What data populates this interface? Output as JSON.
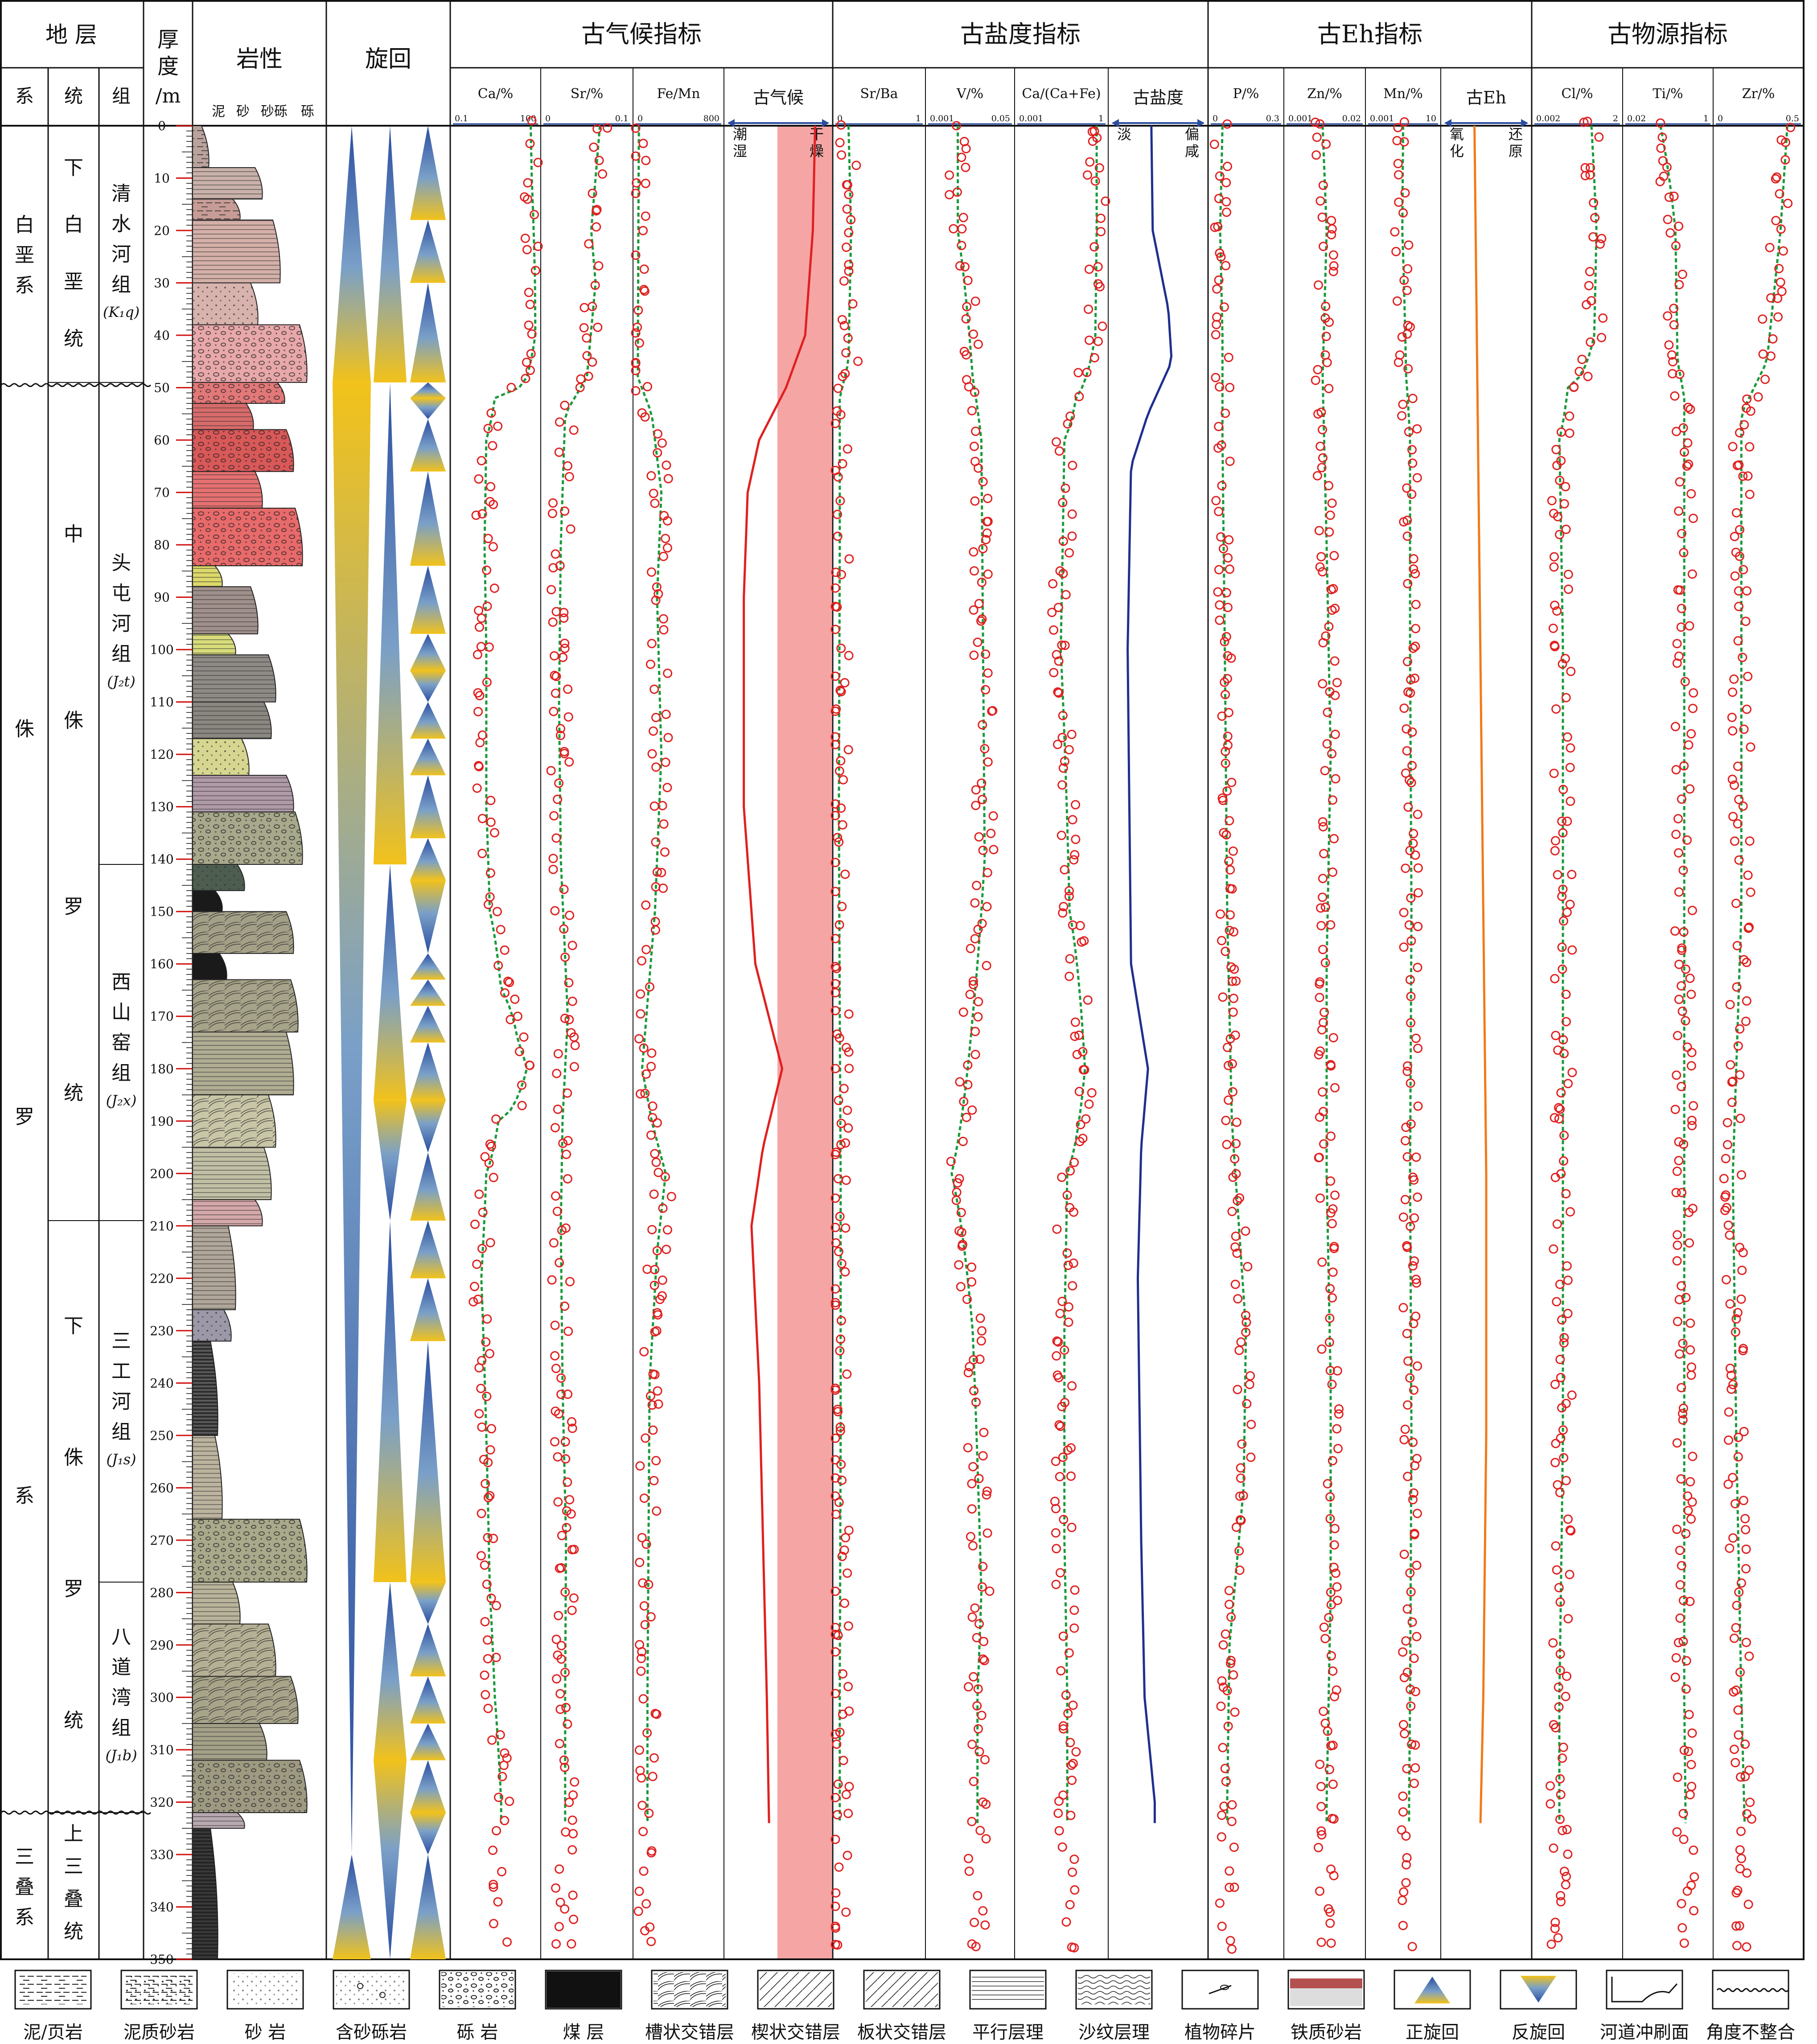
{
  "header": {
    "strata": "地 层",
    "sys": "系",
    "series": "统",
    "formation": "组",
    "thickness": "厚度/m",
    "lithology": "岩性",
    "lith_scale": [
      "泥",
      "砂",
      "砂砾",
      "砾"
    ],
    "cycle": "旋回",
    "groups": [
      "古气候指标",
      "古盐度指标",
      "古Eh指标",
      "古物源指标"
    ]
  },
  "systems": [
    {
      "name": "白垩系",
      "from": 0,
      "to": 49
    },
    {
      "name": "侏罗系",
      "from": 49,
      "to": 322
    },
    {
      "name": "三叠系",
      "from": 322,
      "to": 350
    }
  ],
  "series_units": [
    {
      "name": "下白垩统",
      "from": 0,
      "to": 49
    },
    {
      "name": "中侏罗统",
      "from": 49,
      "to": 209
    },
    {
      "name": "下侏罗统",
      "from": 209,
      "to": 322
    },
    {
      "name": "上三叠统",
      "from": 322,
      "to": 350
    }
  ],
  "formations": [
    {
      "name": "清水河组",
      "code": "(K₁q)",
      "from": 0,
      "to": 49
    },
    {
      "name": "头屯河组",
      "code": "(J₂t)",
      "from": 49,
      "to": 141
    },
    {
      "name": "西山窑组",
      "code": "(J₂x)",
      "from": 141,
      "to": 209
    },
    {
      "name": "三工河组",
      "code": "(J₁s)",
      "from": 209,
      "to": 278
    },
    {
      "name": "八道湾组",
      "code": "(J₁b)",
      "from": 278,
      "to": 322
    },
    {
      "name": "",
      "code": "",
      "from": 322,
      "to": 350
    }
  ],
  "legend": [
    {
      "label": "泥/页岩",
      "icon": "mudstone-pattern"
    },
    {
      "label": "泥质砂岩",
      "icon": "muddy-sandstone-pattern"
    },
    {
      "label": "砂 岩",
      "icon": "sandstone-pattern"
    },
    {
      "label": "含砂砾岩",
      "icon": "pebbly-sandstone-pattern"
    },
    {
      "label": "砾 岩",
      "icon": "conglomerate-pattern"
    },
    {
      "label": "煤 层",
      "icon": "coal-pattern"
    },
    {
      "label": "槽状交错层",
      "icon": "trough-cross-bedding-pattern"
    },
    {
      "label": "楔状交错层",
      "icon": "wedge-cross-bedding-pattern"
    },
    {
      "label": "板状交错层",
      "icon": "tabular-cross-bedding-pattern"
    },
    {
      "label": "平行层理",
      "icon": "parallel-bedding-pattern"
    },
    {
      "label": "沙纹层理",
      "icon": "ripple-bedding-pattern"
    },
    {
      "label": "植物碎片",
      "icon": "plant-fragment-icon"
    },
    {
      "label": "铁质砂岩",
      "icon": "ferruginous-sandstone-pattern"
    },
    {
      "label": "正旋回",
      "icon": "fining-upward-cycle-icon"
    },
    {
      "label": "反旋回",
      "icon": "coarsening-upward-cycle-icon"
    },
    {
      "label": "河道冲刷面",
      "icon": "channel-scour-icon"
    },
    {
      "label": "角度不整合",
      "icon": "angular-unconformity-icon"
    }
  ],
  "colors": {
    "points": "#e02020",
    "trend": "#1a9a3a",
    "climate_curve": "#e02020",
    "climate_band": "#f6a5a5",
    "salinity_curve": "#1f2f8f",
    "eh_curve": "#f07a1a",
    "cycle_yellow": "#f2c21a",
    "cycle_blue": "#2a4da0"
  },
  "chart_data": {
    "type": "scatter",
    "y_axis": {
      "label": "厚度/m",
      "range": [
        0,
        350
      ],
      "ticks": [
        0,
        10,
        20,
        30,
        40,
        50,
        60,
        70,
        80,
        90,
        100,
        110,
        120,
        130,
        140,
        150,
        160,
        170,
        180,
        190,
        200,
        210,
        220,
        230,
        240,
        250,
        260,
        270,
        280,
        290,
        300,
        310,
        320,
        330,
        340,
        350
      ]
    },
    "panels": [
      {
        "group": "古气候指标",
        "name": "Ca/%",
        "kind": "points",
        "scale": "log",
        "xlim": [
          0.1,
          100
        ],
        "ticks": [
          "0.1",
          "100"
        ],
        "trend": [
          [
            0,
            55
          ],
          [
            10,
            60
          ],
          [
            20,
            70
          ],
          [
            30,
            78
          ],
          [
            40,
            80
          ],
          [
            48,
            40
          ],
          [
            52,
            3
          ],
          [
            60,
            1.5
          ],
          [
            80,
            1.3
          ],
          [
            100,
            1.5
          ],
          [
            130,
            1.5
          ],
          [
            150,
            2
          ],
          [
            165,
            5
          ],
          [
            175,
            20
          ],
          [
            180,
            40
          ],
          [
            185,
            20
          ],
          [
            190,
            4
          ],
          [
            200,
            1.5
          ],
          [
            220,
            1
          ],
          [
            250,
            1.5
          ],
          [
            280,
            2
          ],
          [
            300,
            3
          ],
          [
            320,
            5
          ]
        ]
      },
      {
        "group": "古气候指标",
        "name": "Sr/%",
        "kind": "points",
        "scale": "linear",
        "xlim": [
          0,
          0.1
        ],
        "ticks": [
          "0",
          "0.1"
        ],
        "trend": [
          [
            0,
            0.065
          ],
          [
            10,
            0.06
          ],
          [
            20,
            0.055
          ],
          [
            30,
            0.06
          ],
          [
            48,
            0.05
          ],
          [
            55,
            0.025
          ],
          [
            80,
            0.02
          ],
          [
            110,
            0.018
          ],
          [
            140,
            0.02
          ],
          [
            170,
            0.028
          ],
          [
            190,
            0.022
          ],
          [
            210,
            0.02
          ],
          [
            240,
            0.022
          ],
          [
            270,
            0.026
          ],
          [
            300,
            0.025
          ],
          [
            320,
            0.025
          ]
        ]
      },
      {
        "group": "古气候指标",
        "name": "Fe/Mn",
        "kind": "points",
        "scale": "linear",
        "xlim": [
          0,
          800
        ],
        "ticks": [
          "0",
          "800"
        ],
        "trend": [
          [
            0,
            30
          ],
          [
            20,
            25
          ],
          [
            48,
            20
          ],
          [
            55,
            150
          ],
          [
            70,
            240
          ],
          [
            90,
            200
          ],
          [
            120,
            240
          ],
          [
            150,
            180
          ],
          [
            180,
            60
          ],
          [
            190,
            150
          ],
          [
            200,
            280
          ],
          [
            215,
            200
          ],
          [
            240,
            130
          ],
          [
            270,
            120
          ],
          [
            300,
            110
          ],
          [
            320,
            110
          ]
        ]
      },
      {
        "group": "古气候指标",
        "name": "古气候",
        "kind": "curve",
        "left_label": "潮湿",
        "right_label": "干燥",
        "xlim": [
          0,
          1
        ],
        "curve": [
          [
            0,
            0.98
          ],
          [
            20,
            0.95
          ],
          [
            40,
            0.85
          ],
          [
            50,
            0.6
          ],
          [
            60,
            0.25
          ],
          [
            70,
            0.1
          ],
          [
            90,
            0.05
          ],
          [
            130,
            0.05
          ],
          [
            160,
            0.2
          ],
          [
            180,
            0.55
          ],
          [
            195,
            0.3
          ],
          [
            210,
            0.15
          ],
          [
            240,
            0.25
          ],
          [
            270,
            0.3
          ],
          [
            300,
            0.35
          ],
          [
            325,
            0.38
          ]
        ]
      },
      {
        "group": "古盐度指标",
        "name": "Sr/Ba",
        "kind": "points",
        "scale": "linear",
        "xlim": [
          0,
          1
        ],
        "ticks": [
          "0",
          "1"
        ],
        "trend": [
          [
            0,
            0.15
          ],
          [
            20,
            0.18
          ],
          [
            45,
            0.15
          ],
          [
            52,
            0.05
          ],
          [
            80,
            0.05
          ],
          [
            130,
            0.04
          ],
          [
            170,
            0.05
          ],
          [
            200,
            0.06
          ],
          [
            250,
            0.06
          ],
          [
            300,
            0.05
          ],
          [
            325,
            0.05
          ]
        ]
      },
      {
        "group": "古盐度指标",
        "name": "V/%",
        "kind": "points",
        "scale": "log",
        "xlim": [
          0.001,
          0.05
        ],
        "ticks": [
          "0.001",
          "0.05"
        ],
        "trend": [
          [
            0,
            0.004
          ],
          [
            20,
            0.004
          ],
          [
            48,
            0.008
          ],
          [
            60,
            0.012
          ],
          [
            100,
            0.013
          ],
          [
            140,
            0.014
          ],
          [
            170,
            0.008
          ],
          [
            200,
            0.003
          ],
          [
            230,
            0.008
          ],
          [
            280,
            0.012
          ],
          [
            300,
            0.01
          ],
          [
            325,
            0.01
          ]
        ]
      },
      {
        "group": "古盐度指标",
        "name": "Ca/(Ca+Fe)",
        "kind": "points",
        "scale": "log",
        "xlim": [
          0.001,
          1
        ],
        "ticks": [
          "0.001",
          "1"
        ],
        "trend": [
          [
            0,
            0.5
          ],
          [
            20,
            0.5
          ],
          [
            40,
            0.45
          ],
          [
            52,
            0.1
          ],
          [
            60,
            0.04
          ],
          [
            100,
            0.03
          ],
          [
            150,
            0.06
          ],
          [
            180,
            0.2
          ],
          [
            200,
            0.05
          ],
          [
            230,
            0.04
          ],
          [
            270,
            0.04
          ],
          [
            300,
            0.05
          ],
          [
            325,
            0.05
          ]
        ]
      },
      {
        "group": "古盐度指标",
        "name": "古盐度",
        "kind": "curve",
        "left_label": "淡",
        "right_label": "偏咸",
        "xlim": [
          0,
          1
        ],
        "curve": [
          [
            0,
            0.4
          ],
          [
            20,
            0.42
          ],
          [
            35,
            0.65
          ],
          [
            45,
            0.7
          ],
          [
            55,
            0.35
          ],
          [
            65,
            0.1
          ],
          [
            100,
            0.05
          ],
          [
            160,
            0.1
          ],
          [
            180,
            0.35
          ],
          [
            195,
            0.25
          ],
          [
            220,
            0.2
          ],
          [
            270,
            0.25
          ],
          [
            300,
            0.3
          ],
          [
            320,
            0.45
          ]
        ]
      },
      {
        "group": "古Eh指标",
        "name": "P/%",
        "kind": "points",
        "scale": "linear",
        "xlim": [
          0,
          0.3
        ],
        "ticks": [
          "0",
          "0.3"
        ],
        "trend": [
          [
            0,
            0.05
          ],
          [
            20,
            0.04
          ],
          [
            40,
            0.05
          ],
          [
            60,
            0.05
          ],
          [
            100,
            0.06
          ],
          [
            150,
            0.07
          ],
          [
            190,
            0.09
          ],
          [
            210,
            0.12
          ],
          [
            230,
            0.15
          ],
          [
            260,
            0.14
          ],
          [
            290,
            0.08
          ],
          [
            320,
            0.07
          ]
        ]
      },
      {
        "group": "古Eh指标",
        "name": "Zn/%",
        "kind": "points",
        "scale": "linear",
        "xlim": [
          0.001,
          0.02
        ],
        "ticks": [
          "0.001",
          "0.02"
        ],
        "trend": [
          [
            0,
            0.01
          ],
          [
            20,
            0.011
          ],
          [
            48,
            0.01
          ],
          [
            80,
            0.011
          ],
          [
            120,
            0.012
          ],
          [
            160,
            0.011
          ],
          [
            200,
            0.011
          ],
          [
            240,
            0.012
          ],
          [
            280,
            0.012
          ],
          [
            320,
            0.011
          ]
        ]
      },
      {
        "group": "古Eh指标",
        "name": "Mn/%",
        "kind": "points",
        "scale": "log",
        "xlim": [
          0.001,
          10
        ],
        "ticks": [
          "0.001",
          "10"
        ],
        "trend": [
          [
            0,
            0.1
          ],
          [
            20,
            0.09
          ],
          [
            48,
            0.15
          ],
          [
            60,
            0.25
          ],
          [
            100,
            0.25
          ],
          [
            150,
            0.3
          ],
          [
            200,
            0.25
          ],
          [
            250,
            0.3
          ],
          [
            300,
            0.25
          ],
          [
            320,
            0.22
          ]
        ]
      },
      {
        "group": "古Eh指标",
        "name": "古Eh",
        "kind": "curve",
        "left_label": "氧化",
        "right_label": "还原",
        "xlim": [
          0,
          1
        ],
        "curve": [
          [
            0,
            0.3
          ],
          [
            50,
            0.35
          ],
          [
            100,
            0.4
          ],
          [
            150,
            0.45
          ],
          [
            200,
            0.5
          ],
          [
            250,
            0.5
          ],
          [
            300,
            0.45
          ],
          [
            325,
            0.4
          ]
        ]
      },
      {
        "group": "古物源指标",
        "name": "Cl/%",
        "kind": "points",
        "scale": "log",
        "xlim": [
          0.002,
          2
        ],
        "ticks": [
          "0.002",
          "2"
        ],
        "trend": [
          [
            0,
            0.2
          ],
          [
            20,
            0.3
          ],
          [
            40,
            0.25
          ],
          [
            50,
            0.03
          ],
          [
            60,
            0.015
          ],
          [
            100,
            0.02
          ],
          [
            150,
            0.02
          ],
          [
            200,
            0.02
          ],
          [
            250,
            0.02
          ],
          [
            300,
            0.015
          ],
          [
            325,
            0.015
          ]
        ]
      },
      {
        "group": "古物源指标",
        "name": "Ti/%",
        "kind": "points",
        "scale": "log",
        "xlim": [
          0.02,
          1
        ],
        "ticks": [
          "0.02",
          "1"
        ],
        "trend": [
          [
            0,
            0.1
          ],
          [
            20,
            0.2
          ],
          [
            45,
            0.22
          ],
          [
            52,
            0.3
          ],
          [
            80,
            0.3
          ],
          [
            120,
            0.3
          ],
          [
            160,
            0.3
          ],
          [
            200,
            0.3
          ],
          [
            250,
            0.3
          ],
          [
            300,
            0.3
          ],
          [
            325,
            0.32
          ]
        ]
      },
      {
        "group": "古物源指标",
        "name": "Zr/%",
        "kind": "points",
        "scale": "linear",
        "xlim": [
          0,
          0.5
        ],
        "ticks": [
          "0",
          "0.5"
        ],
        "trend": [
          [
            0,
            0.42
          ],
          [
            20,
            0.38
          ],
          [
            45,
            0.3
          ],
          [
            55,
            0.15
          ],
          [
            100,
            0.15
          ],
          [
            150,
            0.15
          ],
          [
            200,
            0.1
          ],
          [
            250,
            0.12
          ],
          [
            300,
            0.15
          ],
          [
            325,
            0.17
          ]
        ]
      }
    ]
  }
}
